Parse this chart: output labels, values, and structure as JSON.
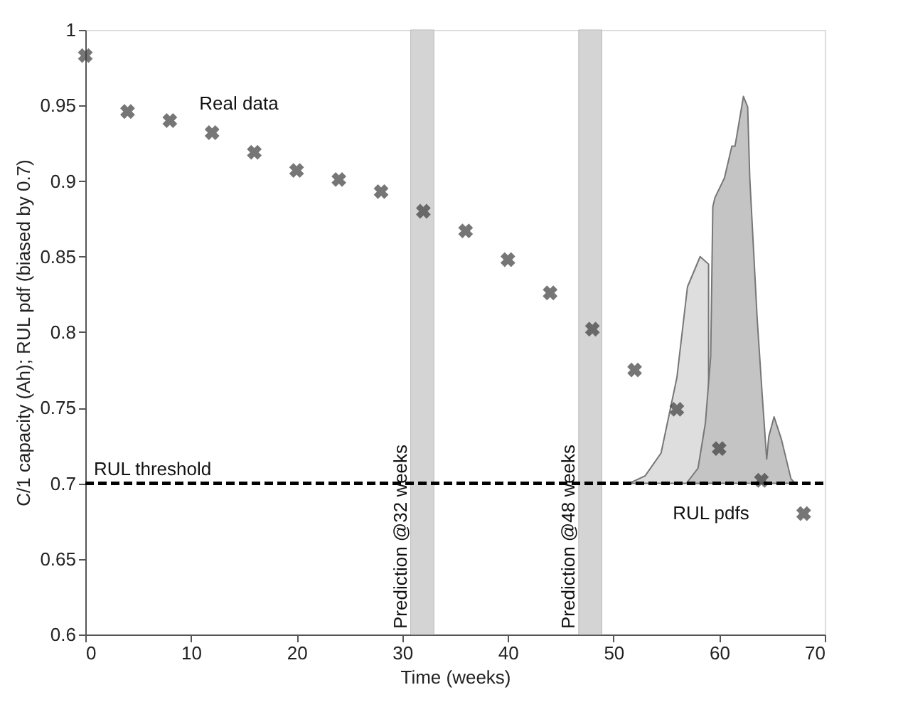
{
  "chart_data": {
    "type": "scatter",
    "xlabel": "Time (weeks)",
    "ylabel": "C/1 capacity (Ah);   RUL pdf (biased by 0.7)",
    "xlim": [
      0,
      70
    ],
    "xticks": [
      0,
      10,
      20,
      30,
      40,
      50,
      60,
      70
    ],
    "ylim": [
      0.6,
      1
    ],
    "yticks": [
      0.6,
      0.65,
      0.7,
      0.75,
      0.8,
      0.85,
      0.9,
      0.95,
      1
    ],
    "grid": false,
    "series": [
      {
        "type": "area",
        "color": "#dedede",
        "x": [
          51.5,
          53,
          54.5,
          56,
          57,
          58.2,
          59
        ],
        "values": [
          0.7,
          0.705,
          0.72,
          0.77,
          0.83,
          0.85,
          0.845
        ]
      },
      {
        "type": "area",
        "color": "#c4c4c4",
        "x": [
          56.9,
          58,
          58.7,
          59.2,
          59.4,
          59.6,
          60.5,
          61.2,
          61.5,
          62.3,
          62.7,
          62.9,
          63.6,
          64.1,
          64.5,
          64.7,
          65.2,
          65.9,
          66.8,
          67.2
        ],
        "values": [
          0.7,
          0.71,
          0.74,
          0.784,
          0.883,
          0.889,
          0.902,
          0.923,
          0.923,
          0.956,
          0.949,
          0.902,
          0.809,
          0.756,
          0.716,
          0.731,
          0.744,
          0.729,
          0.703,
          0.7
        ]
      },
      {
        "color": "#3c3c3c",
        "marker": "cross",
        "x": [
          0,
          4,
          8,
          12,
          16,
          20,
          24,
          28,
          32,
          36,
          40,
          44,
          48,
          52,
          56,
          60,
          64,
          68
        ],
        "values": [
          0.983,
          0.946,
          0.94,
          0.932,
          0.919,
          0.907,
          0.901,
          0.893,
          0.88,
          0.867,
          0.848,
          0.826,
          0.802,
          0.775,
          0.749,
          0.723,
          0.702,
          0.68
        ]
      }
    ],
    "ref_lines": [
      {
        "axis": "y",
        "value": 0.7,
        "label": "RUL threshold",
        "color": "#000000",
        "line_style": "dashed"
      }
    ],
    "bands": [
      {
        "axis": "x",
        "from": 30.8,
        "to": 33,
        "label": "Prediction @32 weeks",
        "color": "#d4d4d4"
      },
      {
        "axis": "x",
        "from": 46.7,
        "to": 48.9,
        "label": "Prediction @48 weeks",
        "color": "#d4d4d4"
      }
    ],
    "annotations": [
      "Real data",
      "RUL pdfs"
    ]
  }
}
